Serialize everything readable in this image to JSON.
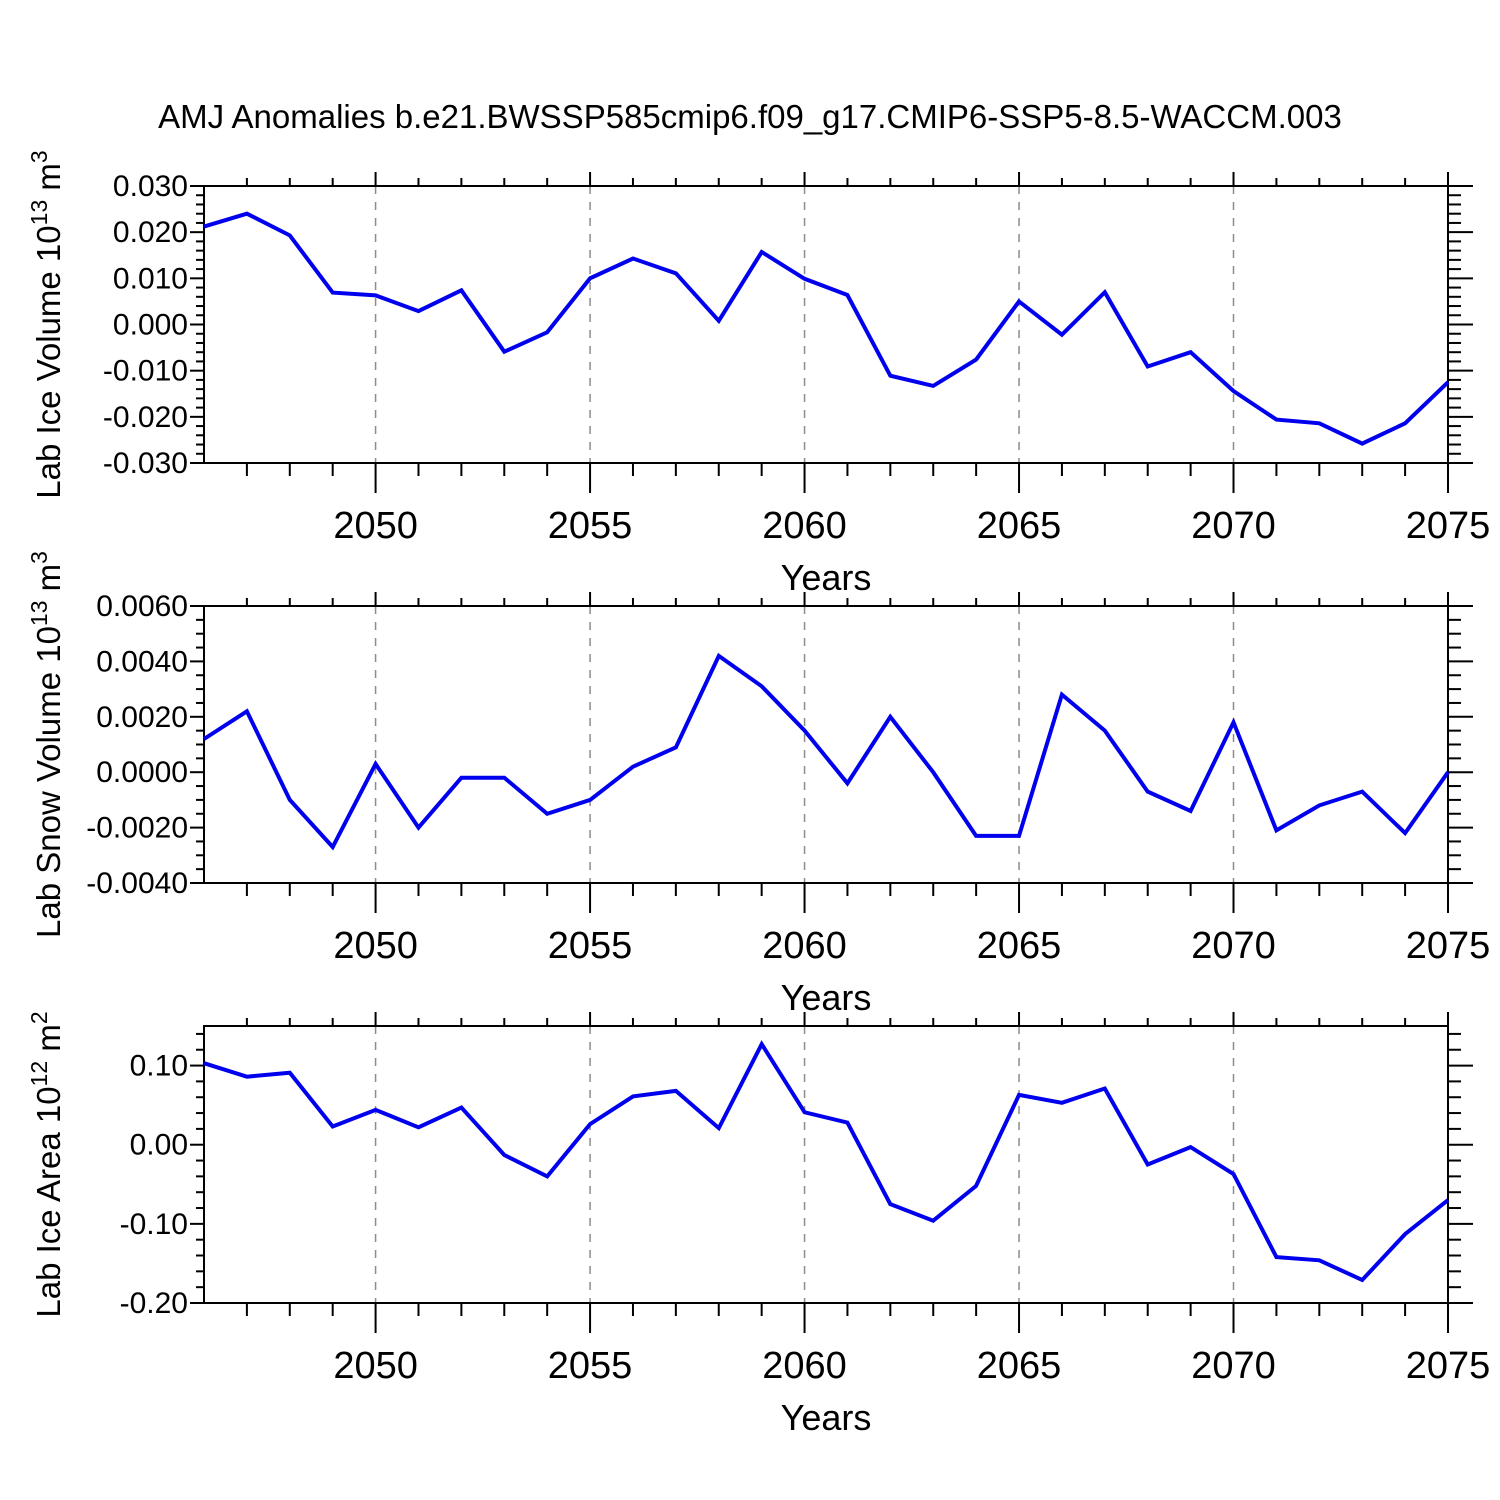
{
  "title": "AMJ Anomalies b.e21.BWSSP585cmip6.f09_g17.CMIP6-SSP5-8.5-WACCM.003",
  "style": {
    "line_color": "#0000ee",
    "grid_color": "#8c8c8c",
    "axis_color": "#000000",
    "background": "#ffffff"
  },
  "x_tick_labels": [
    "2050",
    "2055",
    "2060",
    "2065",
    "2070",
    "2075"
  ],
  "chart_data": [
    {
      "type": "line",
      "name": "lab-ice-volume",
      "ylabel": "Lab Ice Volume 10^13 m^3",
      "ylabel_parts": {
        "base": "Lab Ice Volume 10",
        "exp": "13",
        "unit": " m",
        "unit_exp": "3"
      },
      "xlabel": "Years",
      "xlim": [
        2046,
        2075
      ],
      "ylim": [
        -0.03,
        0.03
      ],
      "grid": "vertical-dashed",
      "legend": "none",
      "x_major_ticks": [
        2050,
        2055,
        2060,
        2065,
        2070,
        2075
      ],
      "x_grid_lines": [
        2050,
        2055,
        2060,
        2065,
        2070
      ],
      "y_major_ticks": [
        0.03,
        0.02,
        0.01,
        0.0,
        -0.01,
        -0.02,
        -0.03
      ],
      "y_tick_labels": [
        "0.030",
        "0.020",
        "0.010",
        "0.000",
        "-0.010",
        "-0.020",
        "-0.030"
      ],
      "y_minor_step": 0.002,
      "x": [
        2046,
        2047,
        2048,
        2049,
        2050,
        2051,
        2052,
        2053,
        2054,
        2055,
        2056,
        2057,
        2058,
        2059,
        2060,
        2061,
        2062,
        2063,
        2064,
        2065,
        2066,
        2067,
        2068,
        2069,
        2070,
        2071,
        2072,
        2073,
        2074,
        2075
      ],
      "values": [
        0.0212,
        0.024,
        0.0193,
        0.0069,
        0.0063,
        0.0029,
        0.0074,
        -0.0059,
        -0.0017,
        0.01,
        0.0143,
        0.0111,
        0.0008,
        0.0157,
        0.0099,
        0.0064,
        -0.0111,
        -0.0133,
        -0.0076,
        0.005,
        -0.0022,
        0.007,
        -0.0091,
        -0.006,
        -0.0144,
        -0.0206,
        -0.0214,
        -0.0258,
        -0.0214,
        -0.0125
      ]
    },
    {
      "type": "line",
      "name": "lab-snow-volume",
      "ylabel": "Lab Snow Volume 10^13 m^3",
      "ylabel_parts": {
        "base": "Lab Snow Volume 10",
        "exp": "13",
        "unit": " m",
        "unit_exp": "3"
      },
      "xlabel": "Years",
      "xlim": [
        2046,
        2075
      ],
      "ylim": [
        -0.004,
        0.006
      ],
      "grid": "vertical-dashed",
      "legend": "none",
      "x_major_ticks": [
        2050,
        2055,
        2060,
        2065,
        2070,
        2075
      ],
      "x_grid_lines": [
        2050,
        2055,
        2060,
        2065,
        2070
      ],
      "y_major_ticks": [
        0.006,
        0.004,
        0.002,
        0.0,
        -0.002,
        -0.004
      ],
      "y_tick_labels": [
        "0.0060",
        "0.0040",
        "0.0020",
        "0.0000",
        "-0.0020",
        "-0.0040"
      ],
      "y_minor_step": 0.0005,
      "x": [
        2046,
        2047,
        2048,
        2049,
        2050,
        2051,
        2052,
        2053,
        2054,
        2055,
        2056,
        2057,
        2058,
        2059,
        2060,
        2061,
        2062,
        2063,
        2064,
        2065,
        2066,
        2067,
        2068,
        2069,
        2070,
        2071,
        2072,
        2073,
        2074,
        2075
      ],
      "values": [
        0.0012,
        0.0022,
        -0.001,
        -0.0027,
        0.0003,
        -0.002,
        -0.0002,
        -0.0002,
        -0.0015,
        -0.001,
        0.0002,
        0.0009,
        0.0042,
        0.0031,
        0.0015,
        -0.0004,
        0.002,
        0.0,
        -0.0023,
        -0.0023,
        0.0028,
        0.0015,
        -0.0007,
        -0.0014,
        0.0018,
        -0.0021,
        -0.0012,
        -0.0007,
        -0.0022,
        0.0
      ]
    },
    {
      "type": "line",
      "name": "lab-ice-area",
      "ylabel": "Lab Ice Area 10^12 m^2",
      "ylabel_parts": {
        "base": "Lab Ice Area 10",
        "exp": "12",
        "unit": " m",
        "unit_exp": "2"
      },
      "xlabel": "Years",
      "xlim": [
        2046,
        2075
      ],
      "ylim": [
        -0.2,
        0.15
      ],
      "grid": "vertical-dashed",
      "legend": "none",
      "x_major_ticks": [
        2050,
        2055,
        2060,
        2065,
        2070,
        2075
      ],
      "x_grid_lines": [
        2050,
        2055,
        2060,
        2065,
        2070
      ],
      "y_major_ticks": [
        0.1,
        0.0,
        -0.1,
        -0.2
      ],
      "y_tick_labels": [
        "0.10",
        "0.00",
        "-0.10",
        "-0.20"
      ],
      "y_minor_step": 0.02,
      "x": [
        2046,
        2047,
        2048,
        2049,
        2050,
        2051,
        2052,
        2053,
        2054,
        2055,
        2056,
        2057,
        2058,
        2059,
        2060,
        2061,
        2062,
        2063,
        2064,
        2065,
        2066,
        2067,
        2068,
        2069,
        2070,
        2071,
        2072,
        2073,
        2074,
        2075
      ],
      "values": [
        0.103,
        0.086,
        0.091,
        0.023,
        0.044,
        0.022,
        0.047,
        -0.013,
        -0.04,
        0.026,
        0.061,
        0.068,
        0.021,
        0.127,
        0.041,
        0.028,
        -0.075,
        -0.096,
        -0.052,
        0.063,
        0.053,
        0.071,
        -0.025,
        -0.003,
        -0.037,
        -0.142,
        -0.146,
        -0.171,
        -0.113,
        -0.07
      ]
    }
  ]
}
